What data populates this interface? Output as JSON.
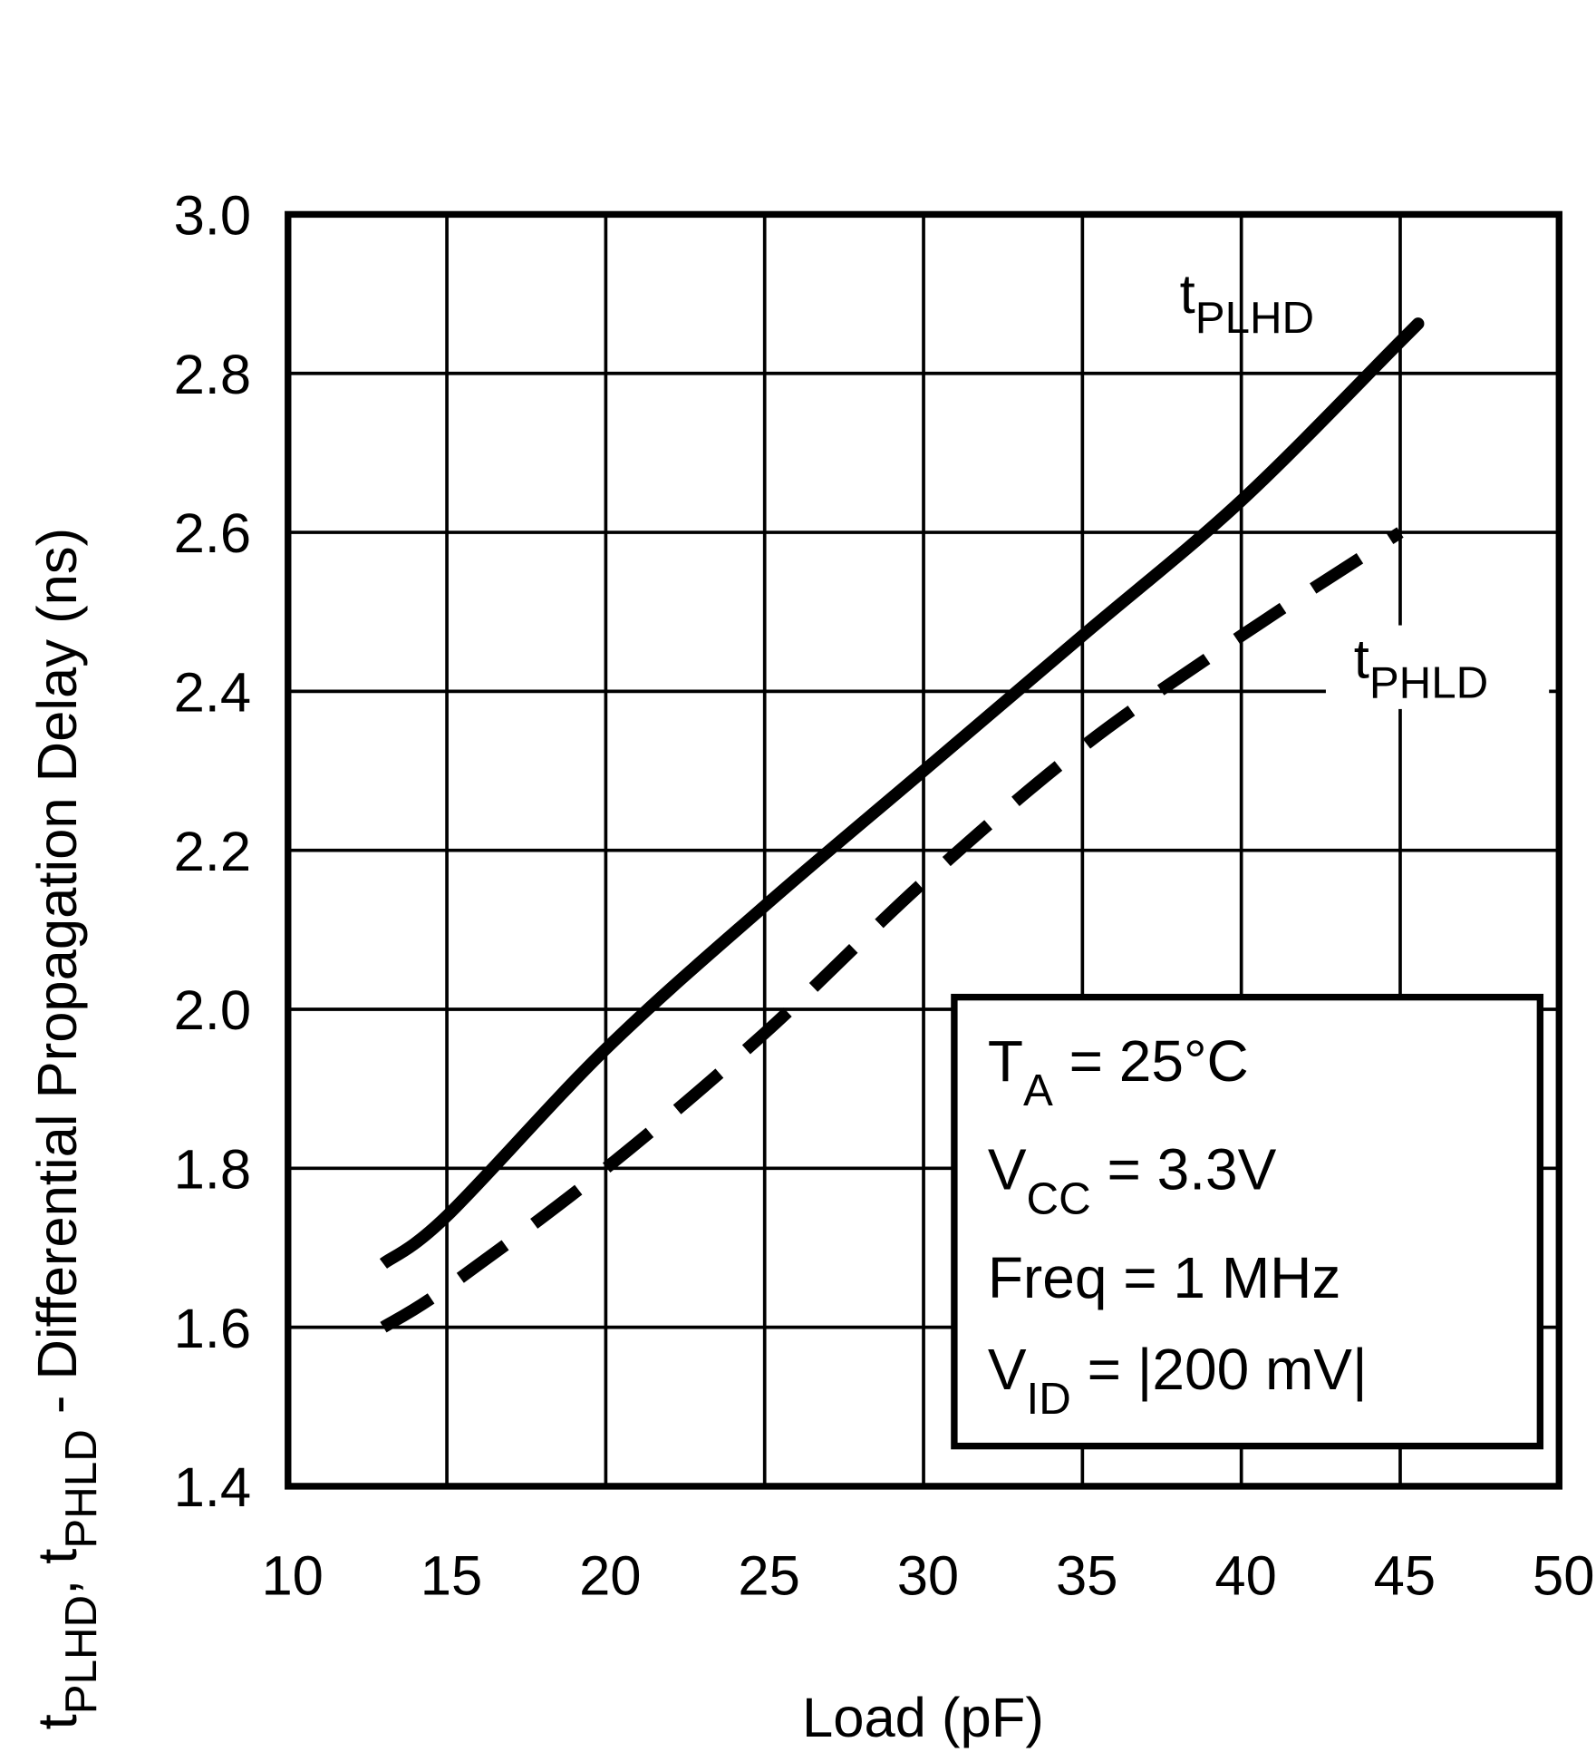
{
  "chart_data": {
    "type": "line",
    "xlabel": "Load (pF)",
    "ylabel": {
      "t1": "t",
      "s1": "PLHD",
      "sep": ", ",
      "t2": "t",
      "s2": "PHLD",
      "rest": " - Differential Propagation Delay (ns)"
    },
    "xlim": [
      10,
      50
    ],
    "ylim": [
      1.4,
      3.0
    ],
    "x_ticks": [
      "10",
      "15",
      "20",
      "25",
      "30",
      "35",
      "40",
      "45",
      "50"
    ],
    "y_ticks": [
      "1.4",
      "1.6",
      "1.8",
      "2.0",
      "2.2",
      "2.4",
      "2.6",
      "2.8",
      "3.0"
    ],
    "grid": true,
    "series": [
      {
        "name": "tPLHD",
        "label_main": "t",
        "label_sub": "PLHD",
        "style": "solid",
        "x": [
          13,
          15,
          20,
          25,
          30,
          35,
          40,
          45,
          45.5
        ],
        "y": [
          1.68,
          1.74,
          1.95,
          2.13,
          2.3,
          2.47,
          2.64,
          2.84,
          2.86
        ]
      },
      {
        "name": "tPHLD",
        "label_main": "t",
        "label_sub": "PHLD",
        "style": "dashed",
        "x": [
          13,
          15,
          20,
          25,
          30,
          35,
          40,
          45
        ],
        "y": [
          1.6,
          1.65,
          1.8,
          1.97,
          2.16,
          2.33,
          2.47,
          2.6
        ]
      }
    ],
    "annotation_box": [
      {
        "main": "T",
        "sub": "A",
        "rest": " = 25°C"
      },
      {
        "main": "V",
        "sub": "CC",
        "rest": " = 3.3V"
      },
      {
        "main": "Freq",
        "sub": "",
        "rest": " = 1 MHz"
      },
      {
        "main": "V",
        "sub": "ID",
        "rest": " = |200 mV|"
      }
    ],
    "colors": {
      "line": "#000000",
      "background": "#ffffff"
    }
  }
}
